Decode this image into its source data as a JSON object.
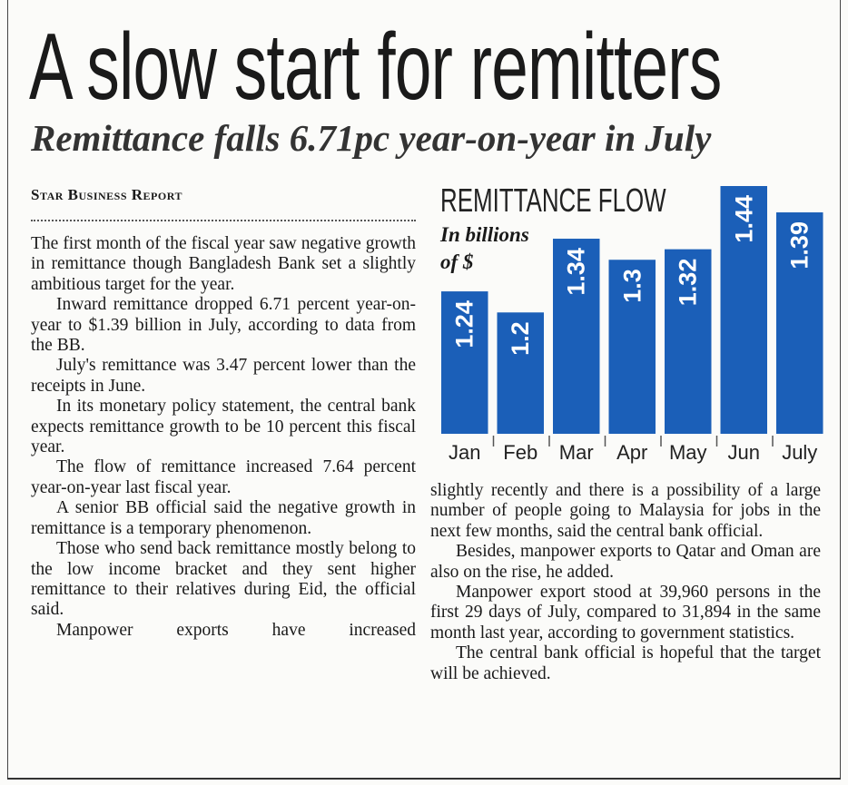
{
  "headline": "A slow start for remitters",
  "subheadline": "Remittance falls 6.71pc year-on-year in July",
  "byline": "Star Business Report",
  "left_column": [
    "The first month of the fiscal year saw negative growth in remittance though Bangladesh Bank set a slightly ambitious target for the year.",
    "Inward remittance dropped 6.71 percent year-on-year to $1.39 billion in July, according to data from the BB.",
    "July's remittance was 3.47 percent lower than the receipts in June.",
    "In its monetary policy statement, the central bank expects remittance growth to be 10 percent this fiscal year.",
    "The flow of remittance increased 7.64 percent year-on-year last fiscal year.",
    "A senior BB official said the negative growth in remittance is a temporary phenomenon.",
    "Those who send back remittance mostly belong to the low income bracket and they sent higher remittance to their relatives during Eid, the official said.",
    "Manpower exports have increased"
  ],
  "right_column": [
    "slightly recently and there is a possibility of a large number of people going to Malaysia for jobs in the next few months, said the central bank official.",
    "Besides, manpower exports to Qatar and Oman are also on the rise, he added.",
    "Manpower export stood at 39,960 persons in the first 29 days of July, compared to 31,894 in the same month last year, according to government statistics.",
    "The central bank official is hopeful that the target will be achieved."
  ],
  "chart_data": {
    "type": "bar",
    "title": "REMITTANCE FLOW",
    "subtitle": "In billions of $",
    "categories": [
      "Jan",
      "Feb",
      "Mar",
      "Apr",
      "May",
      "Jun",
      "July"
    ],
    "values": [
      1.24,
      1.2,
      1.34,
      1.3,
      1.32,
      1.44,
      1.39
    ],
    "color": "#1b5fb8"
  }
}
